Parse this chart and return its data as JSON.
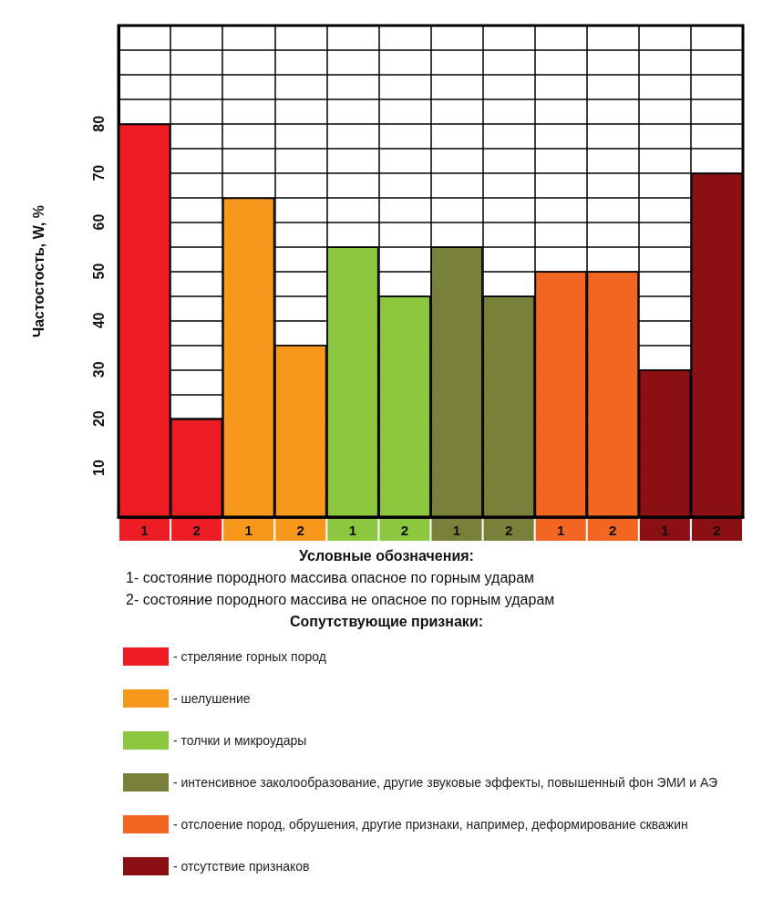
{
  "chart_data": {
    "type": "bar",
    "stacked": true,
    "ylabel": "Частостость, W, %",
    "legend_title": "Сопутствующие признаки:",
    "legend": "bottom",
    "grid": true,
    "annotations": [
      "Условные обозначения:",
      "1- состояние породного массива опасное по горным ударам",
      "2- состояние породного массива не опасное по горным ударам"
    ],
    "categories": [
      "1",
      "2",
      "1",
      "2",
      "1",
      "2",
      "1",
      "2",
      "1",
      "2",
      "1",
      "2"
    ],
    "ylim": [
      0,
      100
    ],
    "yticks": [
      {
        "value": 0,
        "label": null
      },
      {
        "value": 5,
        "label": null
      },
      10,
      {
        "value": 15,
        "label": null
      },
      20,
      {
        "value": 25,
        "label": null
      },
      30,
      {
        "value": 35,
        "label": null
      },
      40,
      {
        "value": 45,
        "label": null
      },
      50,
      {
        "value": 55,
        "label": null
      },
      60,
      {
        "value": 65,
        "label": null
      },
      70,
      {
        "value": 75,
        "label": null
      },
      80,
      {
        "value": 85,
        "label": null
      },
      {
        "value": 90,
        "label": null
      },
      {
        "value": 95,
        "label": null
      },
      {
        "value": 100,
        "label": null
      }
    ],
    "series": [
      {
        "name": "- стреляние горных пород",
        "color": "#ee1c25",
        "values": [
          80,
          20,
          null,
          null,
          null,
          null,
          null,
          null,
          null,
          null,
          null,
          null
        ]
      },
      {
        "name": "- шелушение",
        "color": "#f7981d",
        "values": [
          null,
          null,
          65,
          35,
          null,
          null,
          null,
          null,
          null,
          null,
          null,
          null
        ]
      },
      {
        "name": "- толчки и микроудары",
        "color": "#8dc63f",
        "values": [
          null,
          null,
          null,
          null,
          55,
          45,
          null,
          null,
          null,
          null,
          null,
          null
        ]
      },
      {
        "name": "- интенсивное заколообразование, другие звуковые эффекты, повышенный фон ЭМИ и АЭ",
        "color": "#78803a",
        "values": [
          null,
          null,
          null,
          null,
          null,
          null,
          55,
          45,
          null,
          null,
          null,
          null
        ]
      },
      {
        "name": "- отслоение пород, обрушения, другие признаки, например, деформирование скважин",
        "color": "#f26522",
        "values": [
          null,
          null,
          null,
          null,
          null,
          null,
          null,
          null,
          50,
          50,
          null,
          null
        ]
      },
      {
        "name": "- отсутствие признаков",
        "color": "#8b1014",
        "values": [
          null,
          null,
          null,
          null,
          null,
          null,
          null,
          null,
          null,
          null,
          30,
          70
        ]
      }
    ]
  }
}
